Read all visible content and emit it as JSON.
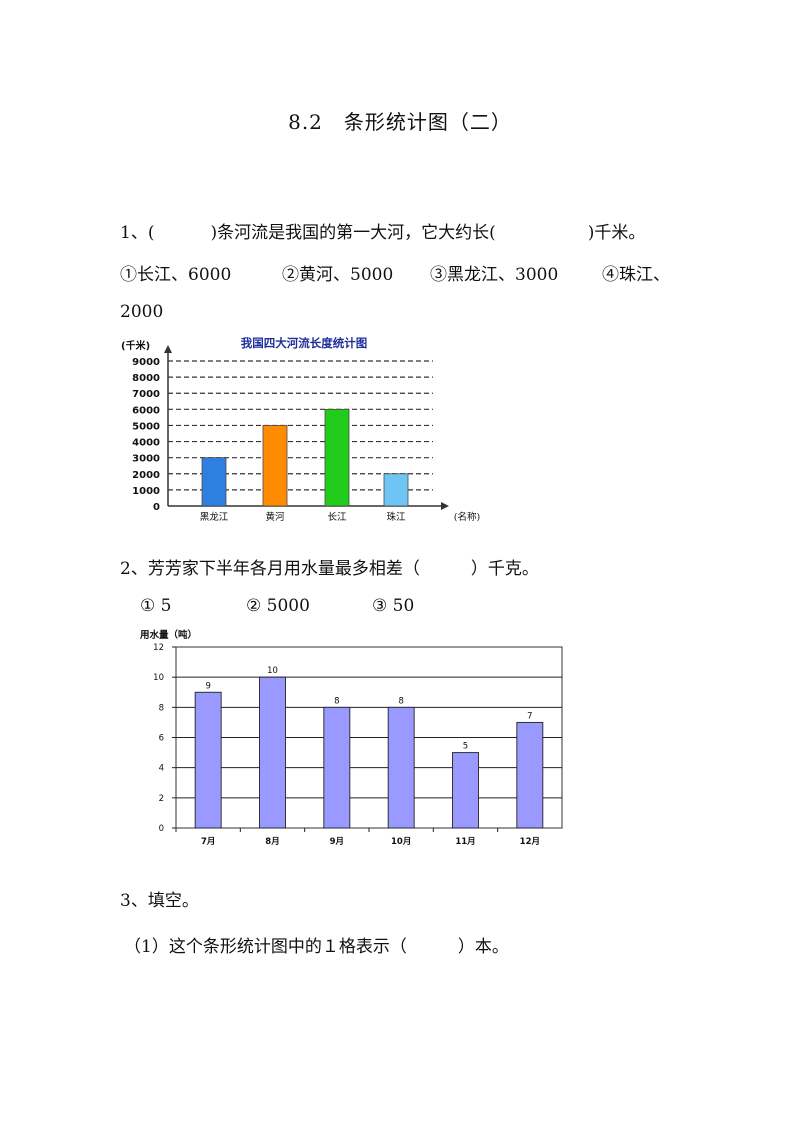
{
  "title": "8.2　条形统计图（二）",
  "q1": {
    "prefix": "1、(",
    "middle": ")条河流是我国的第一大河，它大约长(",
    "suffix": ")千米。",
    "options": [
      "①长江、6000",
      "②黄河、5000",
      "③黑龙江、3000",
      "④珠江、"
    ],
    "tail": "2000"
  },
  "q2": {
    "text": "2、芳芳家下半年各月用水量最多相差（　　　）千克。",
    "options": [
      "① 5",
      "② 5000",
      "③ 50"
    ]
  },
  "q3": {
    "title": "3、填空。",
    "sub1": "（1）这个条形统计图中的１格表示（　　　）本。"
  },
  "chart_data": [
    {
      "type": "bar",
      "title": "我国四大河流长度统计图",
      "ylabel": "(千米)",
      "xlabel": "(名称)",
      "categories": [
        "黑龙江",
        "黄河",
        "长江",
        "珠江"
      ],
      "values": [
        3000,
        5000,
        6000,
        2000
      ],
      "colors": [
        "#2e7fe0",
        "#ff8c00",
        "#22cc1a",
        "#6ec4f2"
      ],
      "yticks": [
        0,
        1000,
        2000,
        3000,
        4000,
        5000,
        6000,
        7000,
        8000,
        9000
      ],
      "ylim": [
        0,
        9000
      ],
      "grid": "dashed"
    },
    {
      "type": "bar",
      "title": "",
      "ylabel": "用水量（吨）",
      "xlabel": "",
      "categories": [
        "7月",
        "8月",
        "9月",
        "10月",
        "11月",
        "12月"
      ],
      "values": [
        9,
        10,
        8,
        8,
        5,
        7
      ],
      "data_labels": [
        "9",
        "10",
        "8",
        "8",
        "5",
        "7"
      ],
      "color": "#9999ff",
      "yticks": [
        0,
        2,
        4,
        6,
        8,
        10,
        12
      ],
      "ylim": [
        0,
        12
      ],
      "grid": "solid"
    }
  ]
}
